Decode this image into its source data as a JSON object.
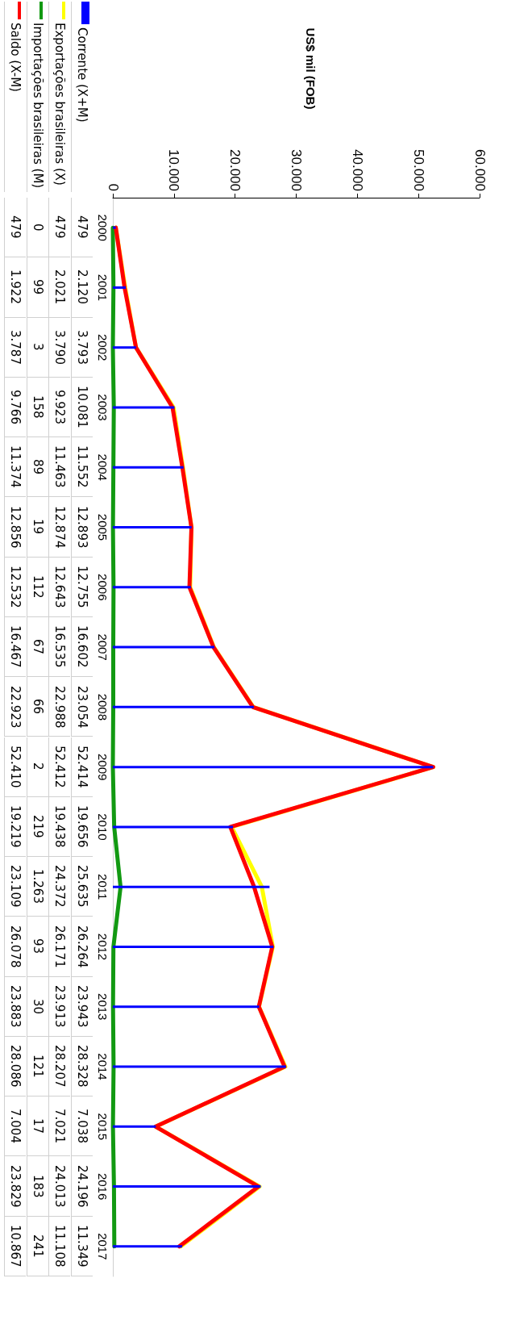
{
  "chart_data": {
    "type": "line",
    "orientation": "horizontal",
    "annotations": [
      "US$ mil (FOB)"
    ],
    "categories": [
      "2000",
      "2001",
      "2002",
      "2003",
      "2004",
      "2005",
      "2006",
      "2007",
      "2008",
      "2009",
      "2010",
      "2011",
      "2012",
      "2013",
      "2014",
      "2015",
      "2016",
      "2017"
    ],
    "series": [
      {
        "name": "Corrente (X+M)",
        "type": "bar",
        "color": "#0000ff",
        "values": [
          479,
          2120,
          3793,
          10081,
          11552,
          12893,
          12755,
          16602,
          23054,
          52414,
          19656,
          25635,
          26264,
          23943,
          28328,
          7038,
          24196,
          11349
        ],
        "value_labels": [
          "479",
          "2.120",
          "3.793",
          "10.081",
          "11.552",
          "12.893",
          "12.755",
          "16.602",
          "23.054",
          "52.414",
          "19.656",
          "25.635",
          "26.264",
          "23.943",
          "28.328",
          "7.038",
          "24.196",
          "11.349"
        ]
      },
      {
        "name": "Exportações brasileiras (X)",
        "color": "#ffff00",
        "values": [
          479,
          2021,
          3790,
          9923,
          11463,
          12874,
          12643,
          16535,
          22988,
          52412,
          19438,
          24372,
          26171,
          23913,
          28207,
          7021,
          24013,
          11108
        ],
        "value_labels": [
          "479",
          "2.021",
          "3.790",
          "9.923",
          "11.463",
          "12.874",
          "12.643",
          "16.535",
          "22.988",
          "52.412",
          "19.438",
          "24.372",
          "26.171",
          "23.913",
          "28.207",
          "7.021",
          "24.013",
          "11.108"
        ]
      },
      {
        "name": "Importações brasileiras (M)",
        "color": "#129912",
        "values": [
          0,
          99,
          3,
          158,
          89,
          19,
          112,
          67,
          66,
          2,
          219,
          1263,
          93,
          30,
          121,
          17,
          183,
          241
        ],
        "value_labels": [
          "0",
          "99",
          "3",
          "158",
          "89",
          "19",
          "112",
          "67",
          "66",
          "2",
          "219",
          "1.263",
          "93",
          "30",
          "121",
          "17",
          "183",
          "241"
        ]
      },
      {
        "name": "Saldo (X-M)",
        "color": "#ff0000",
        "values": [
          479,
          1922,
          3787,
          9766,
          11374,
          12856,
          12532,
          16467,
          22923,
          52410,
          19219,
          23109,
          26078,
          23883,
          28086,
          7004,
          23829,
          10867
        ],
        "value_labels": [
          "479",
          "1.922",
          "3.787",
          "9.766",
          "11.374",
          "12.856",
          "12.532",
          "16.467",
          "22.923",
          "52.410",
          "19.219",
          "23.109",
          "26.078",
          "23.883",
          "28.086",
          "7.004",
          "23.829",
          "10.867"
        ]
      }
    ],
    "xlim": [
      0,
      60000
    ],
    "xticks": [
      0,
      {
        "value": 10000,
        "label": "10.000"
      },
      {
        "value": 20000,
        "label": "20.000"
      },
      {
        "value": 30000,
        "label": "30.000"
      },
      {
        "value": 40000,
        "label": "40.000"
      },
      {
        "value": 50000,
        "label": "50.000"
      },
      {
        "value": 60000,
        "label": "60.000"
      }
    ],
    "grid": false,
    "legend": "top left",
    "marker": "none",
    "line_style": "solid"
  }
}
